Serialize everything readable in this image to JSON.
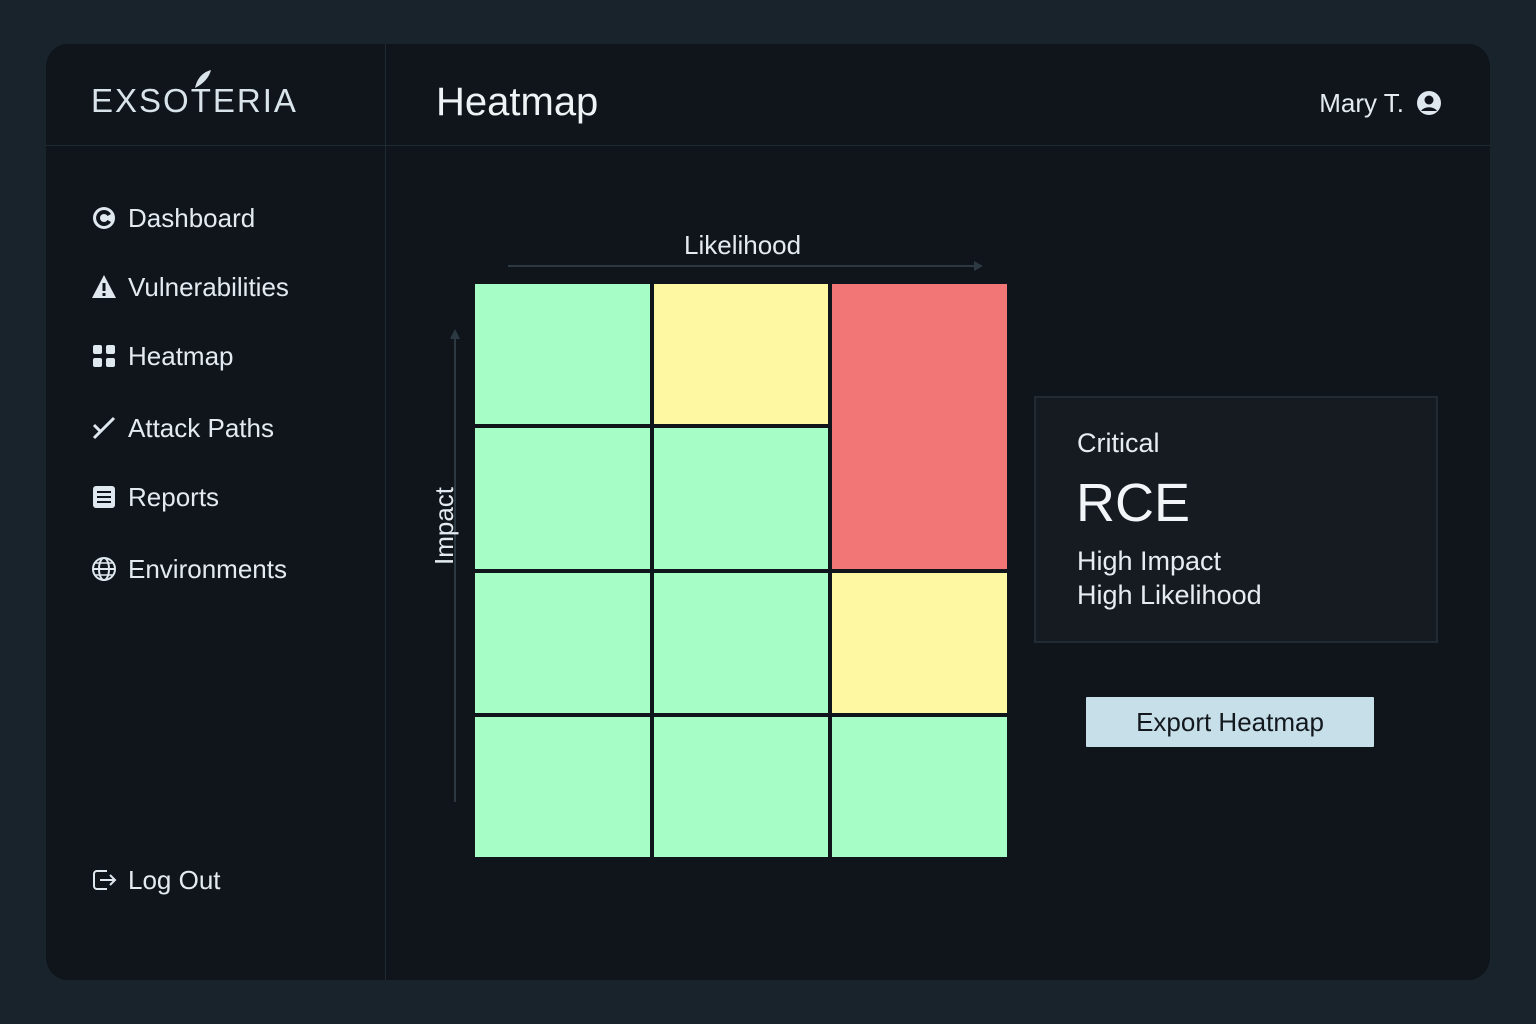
{
  "app": {
    "logo_text": "EXSOTERIA"
  },
  "header": {
    "title": "Heatmap",
    "user_name": "Mary T."
  },
  "sidebar": {
    "items": [
      {
        "label": "Dashboard",
        "icon": "dashboard-icon"
      },
      {
        "label": "Vulnerabilities",
        "icon": "warning-icon"
      },
      {
        "label": "Heatmap",
        "icon": "grid-icon"
      },
      {
        "label": "Attack Paths",
        "icon": "attack-path-icon"
      },
      {
        "label": "Reports",
        "icon": "report-icon"
      },
      {
        "label": "Environments",
        "icon": "globe-icon"
      }
    ],
    "logout_label": "Log Out"
  },
  "heatmap": {
    "x_label": "Likelihood",
    "y_label": "Impact",
    "columns": 3,
    "rows": 4,
    "colors": {
      "low": "#a6fdc6",
      "medium": "#fff8a3",
      "critical": "#f27676"
    },
    "cells": [
      [
        "low",
        "medium",
        "critical"
      ],
      [
        "low",
        "low",
        "critical"
      ],
      [
        "low",
        "low",
        "medium"
      ],
      [
        "low",
        "low",
        "low"
      ]
    ]
  },
  "detail": {
    "severity": "Critical",
    "name": "RCE",
    "impact": "High Impact",
    "likelihood": "High Likelihood"
  },
  "actions": {
    "export_label": "Export Heatmap"
  }
}
